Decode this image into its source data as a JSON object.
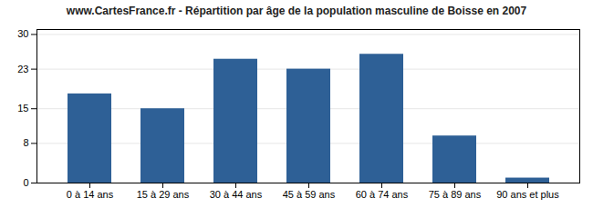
{
  "chart_data": {
    "type": "bar",
    "title": "www.CartesFrance.fr - Répartition par âge de la population masculine de Boisse en 2007",
    "categories": [
      "0 à 14 ans",
      "15 à 29 ans",
      "30 à 44 ans",
      "45 à 59 ans",
      "60 à 74 ans",
      "75 à 89 ans",
      "90 ans et plus"
    ],
    "values": [
      18,
      15,
      25,
      23,
      26,
      9.5,
      1
    ],
    "color": "#2e6096",
    "ylim": [
      0,
      31
    ],
    "yticks": [
      0,
      8,
      15,
      23,
      30
    ],
    "grid": true
  }
}
